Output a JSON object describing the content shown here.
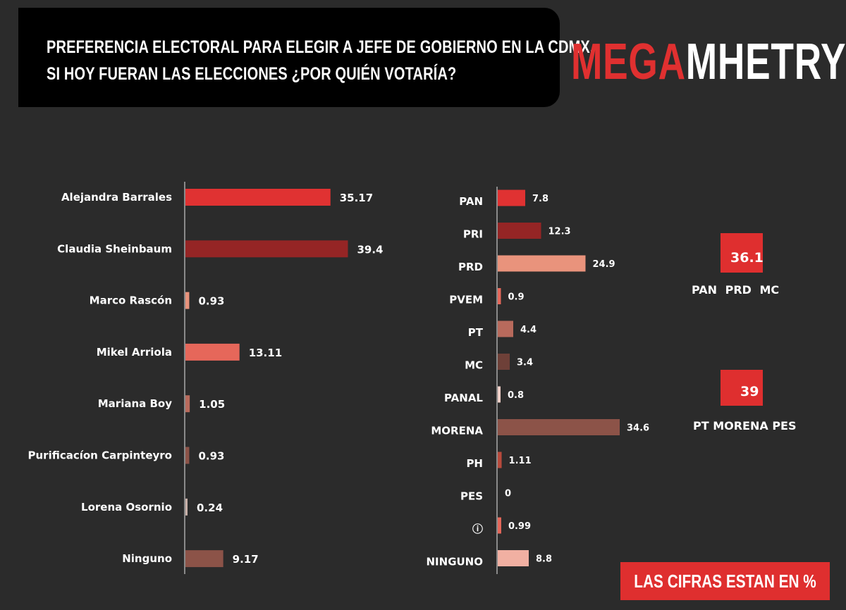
{
  "header": {
    "title_line1": "PREFERENCIA ELECTORAL PARA ELEGIR A JEFE DE GOBIERNO EN LA CDMX.",
    "title_line2": "SI HOY FUERAN LAS ELECCIONES ¿POR QUIÉN VOTARÍA?"
  },
  "logo": {
    "part1": "MEGA",
    "part2": "MHETRYK"
  },
  "colors": {
    "red": "#e03232",
    "dark_red": "#952525",
    "salmon": "#e6675a",
    "light_salmon": "#e9937c",
    "brown": "#8c5348",
    "pale": "#f1b0a2",
    "background": "#2b2b2b"
  },
  "chart_data": [
    {
      "type": "bar",
      "orientation": "horizontal",
      "categories": [
        "Alejandra Barrales",
        "Claudia Sheinbaum",
        "Marco Rascón",
        "Mikel Arriola",
        "Mariana Boy",
        "Purificacíon Carpinteyro",
        "Lorena Osornio",
        "Ninguno"
      ],
      "values": [
        35.17,
        39.4,
        0.93,
        13.11,
        1.05,
        0.93,
        0.24,
        9.17
      ],
      "value_labels": [
        "35.17",
        "39.4",
        "0.93",
        "13.11",
        "1.05",
        "0.93",
        "0.24",
        "9.17"
      ],
      "bar_colors": [
        "#e03232",
        "#952525",
        "#e9937c",
        "#e6675a",
        "#b86a5c",
        "#8c5348",
        "#c8b0a8",
        "#8c5348"
      ]
    },
    {
      "type": "bar",
      "orientation": "horizontal",
      "categories": [
        "PAN",
        "PRI",
        "PRD",
        "PVEM",
        "PT",
        "MC",
        "PANAL",
        "MORENA",
        "PH",
        "PES",
        "ⓘ",
        "NINGUNO"
      ],
      "values": [
        7.8,
        12.3,
        24.9,
        0.9,
        4.4,
        3.4,
        0.8,
        34.6,
        1.11,
        0,
        0.99,
        8.8
      ],
      "value_labels": [
        "7.8",
        "12.3",
        "24.9",
        "0.9",
        "4.4",
        "3.4",
        "0.8",
        "34.6",
        "1.11",
        "0",
        "0.99",
        "8.8"
      ],
      "bar_colors": [
        "#e03232",
        "#952525",
        "#e9937c",
        "#e6675a",
        "#b86a5c",
        "#6e4038",
        "#f1d0c8",
        "#8c5348",
        "#b84a3c",
        "#8c5348",
        "#e6675a",
        "#f1b0a2"
      ]
    }
  ],
  "coalitions": [
    {
      "value": "36.1",
      "members": "PAN   PRD    MC"
    },
    {
      "value": "39",
      "members": "PT  MORENA PES"
    }
  ],
  "note": "LAS CIFRAS ESTAN EN %"
}
